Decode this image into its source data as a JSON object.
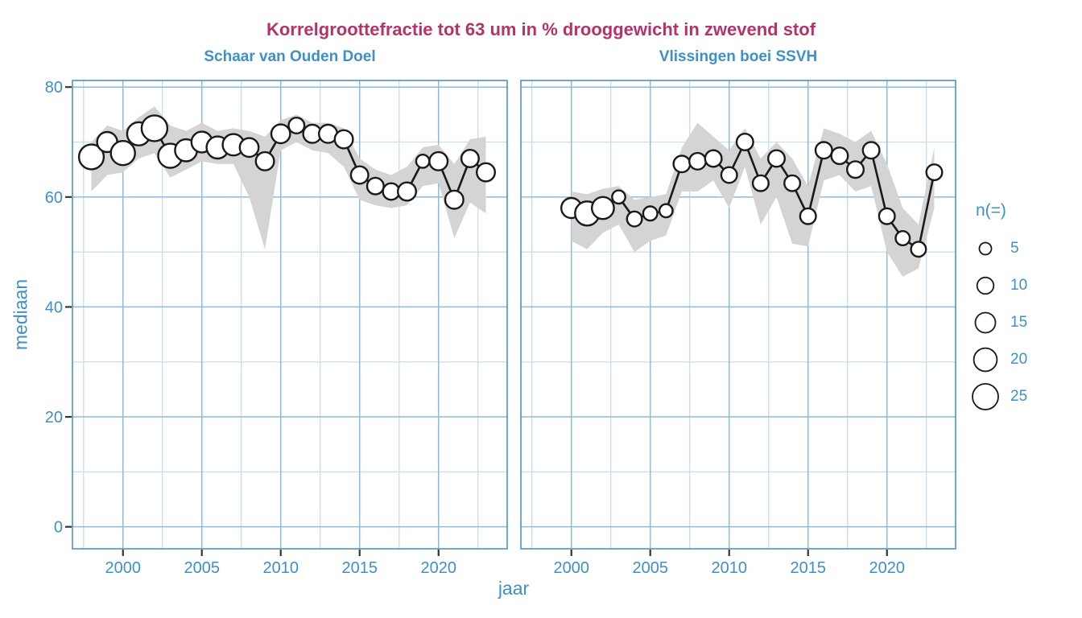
{
  "colors": {
    "title": "#B3336B",
    "blue": "#3E90C5",
    "grid_major": "#8CBBDD",
    "grid_minor": "#C6DEF0",
    "panel_border": "#4B92C5",
    "ribbon": "#D4D4D4",
    "line": "#1A1A1A",
    "point_fill": "#FFFFFF",
    "tick_mark": "#333333"
  },
  "chart_data": {
    "type": "line",
    "title": "Korrelgroottefractie tot 63 um in % drooggewicht in zwevend stof",
    "xlabel": "jaar",
    "ylabel": "mediaan",
    "x_ticks": [
      2000,
      2005,
      2010,
      2015,
      2020
    ],
    "y_ticks": [
      0,
      20,
      40,
      60,
      80
    ],
    "xlim": [
      1996.8,
      2024.35
    ],
    "ylim": [
      -4,
      81.2
    ],
    "grid": true,
    "legend": {
      "title": "n(=)",
      "position": "right",
      "items": [
        {
          "label": "5",
          "n": 5
        },
        {
          "label": "10",
          "n": 10
        },
        {
          "label": "15",
          "n": 15
        },
        {
          "label": "20",
          "n": 20
        },
        {
          "label": "25",
          "n": 25
        }
      ]
    },
    "panels": [
      {
        "facet": "Schaar van Ouden Doel",
        "years": [
          1998,
          1999,
          2000,
          2001,
          2002,
          2003,
          2004,
          2005,
          2006,
          2007,
          2008,
          2009,
          2010,
          2011,
          2012,
          2013,
          2014,
          2015,
          2016,
          2017,
          2018,
          2019,
          2020,
          2021,
          2022,
          2023
        ],
        "median": [
          67.3,
          70,
          68,
          71.5,
          72.5,
          67.5,
          68.5,
          70,
          69,
          69.5,
          69,
          66.5,
          71.5,
          73,
          71.5,
          71.5,
          70.5,
          64,
          62,
          61,
          61,
          66.5,
          66.5,
          59.5,
          67,
          64.5
        ],
        "n": [
          23,
          15,
          22,
          20,
          25,
          22,
          18,
          16,
          18,
          17,
          13,
          12,
          13,
          9,
          12,
          12,
          12,
          11,
          10,
          10,
          12,
          6,
          12,
          12,
          11,
          12
        ],
        "ribbon_low": [
          61,
          64,
          64.5,
          67,
          68,
          63.5,
          65,
          66.5,
          66,
          66,
          60,
          50.5,
          68.5,
          70,
          68.5,
          68,
          65.5,
          59.5,
          58.5,
          58,
          58.5,
          62,
          62.5,
          52.5,
          59,
          57
        ],
        "ribbon_high": [
          70,
          73,
          72,
          74.5,
          76.5,
          73,
          72,
          73.5,
          72,
          72.5,
          72,
          71,
          74,
          75,
          73.5,
          73.5,
          72.5,
          67,
          65,
          64,
          65.5,
          69,
          69.5,
          66,
          70.5,
          71
        ]
      },
      {
        "facet": "Vlissingen boei SSVH",
        "years": [
          2000,
          2001,
          2002,
          2003,
          2004,
          2005,
          2006,
          2007,
          2008,
          2009,
          2010,
          2011,
          2012,
          2013,
          2014,
          2015,
          2016,
          2017,
          2018,
          2019,
          2020,
          2021,
          2022,
          2023
        ],
        "median": [
          58,
          57,
          58,
          60,
          56,
          57,
          57.5,
          66,
          66.5,
          67,
          64,
          70,
          62.5,
          67,
          62.5,
          56.5,
          68.5,
          67.5,
          65,
          68.5,
          56.5,
          52.5,
          50.5,
          64.5
        ],
        "n": [
          15,
          22,
          18,
          6,
          8,
          7,
          6,
          10,
          10,
          10,
          9,
          10,
          9,
          10,
          9,
          9,
          10,
          10,
          10,
          10,
          9,
          7,
          8,
          9
        ],
        "ribbon_low": [
          52,
          50.5,
          53.5,
          55,
          50,
          52,
          53,
          61,
          61,
          63,
          58,
          65.5,
          55,
          60,
          51.5,
          51,
          63,
          64,
          61,
          62,
          50,
          45.5,
          47,
          58
        ],
        "ribbon_high": [
          61,
          60.5,
          61.5,
          62,
          59.5,
          60,
          60.5,
          69,
          73.5,
          71,
          68.5,
          72.5,
          67,
          70,
          67,
          62,
          72.5,
          71.5,
          70,
          72,
          66,
          58,
          55,
          69
        ]
      }
    ]
  }
}
